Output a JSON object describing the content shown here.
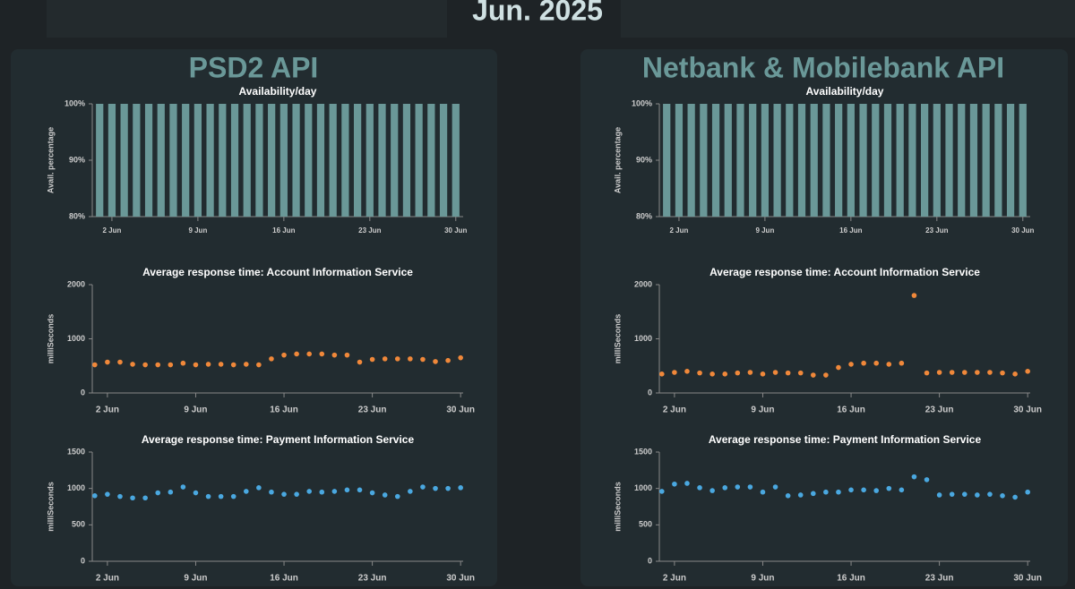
{
  "title": "Jun. 2025",
  "panels": [
    "PSD2 API",
    "Netbank & Mobilebank API"
  ],
  "chart_data": [
    {
      "type": "bar",
      "title": "Availability/day",
      "y_label": "Avail. percentage",
      "color": "#6a9898",
      "x": [
        1,
        2,
        3,
        4,
        5,
        6,
        7,
        8,
        9,
        10,
        11,
        12,
        13,
        14,
        15,
        16,
        17,
        18,
        19,
        20,
        21,
        22,
        23,
        24,
        25,
        26,
        27,
        28,
        29,
        30
      ],
      "values": [
        100,
        100,
        100,
        100,
        100,
        100,
        100,
        100,
        100,
        100,
        100,
        100,
        100,
        100,
        100,
        100,
        100,
        100,
        100,
        100,
        100,
        100,
        100,
        100,
        100,
        100,
        100,
        100,
        100,
        100
      ],
      "xlim": [
        0.4,
        30.6
      ],
      "ylim": [
        80,
        100
      ],
      "xticks": [
        {
          "value": 2,
          "label": "2 Jun"
        },
        {
          "value": 9,
          "label": "9 Jun"
        },
        {
          "value": 16,
          "label": "16 Jun"
        },
        {
          "value": 23,
          "label": "23 Jun"
        },
        {
          "value": 30,
          "label": "30 Jun"
        }
      ],
      "yticks": [
        {
          "value": 80,
          "label": "80%"
        },
        {
          "value": 90,
          "label": "90%"
        },
        {
          "value": 100,
          "label": "100%"
        }
      ]
    },
    {
      "type": "scatter",
      "title": "Average response time: Account Information Service",
      "y_label": "milliSeconds",
      "color": "#f0883a",
      "x": [
        1,
        2,
        3,
        4,
        5,
        6,
        7,
        8,
        9,
        10,
        11,
        12,
        13,
        14,
        15,
        16,
        17,
        18,
        19,
        20,
        21,
        22,
        23,
        24,
        25,
        26,
        27,
        28,
        29,
        30
      ],
      "values": [
        520,
        570,
        570,
        530,
        520,
        520,
        520,
        550,
        520,
        530,
        530,
        520,
        530,
        520,
        630,
        700,
        720,
        720,
        720,
        700,
        700,
        570,
        620,
        630,
        630,
        630,
        620,
        580,
        600,
        650
      ],
      "xlim": [
        0.8,
        30.2
      ],
      "ylim": [
        0,
        2000
      ],
      "xticks": [
        {
          "value": 2,
          "label": "2 Jun"
        },
        {
          "value": 9,
          "label": "9 Jun"
        },
        {
          "value": 16,
          "label": "16 Jun"
        },
        {
          "value": 23,
          "label": "23 Jun"
        },
        {
          "value": 30,
          "label": "30 Jun"
        }
      ],
      "yticks": [
        0,
        1000,
        2000
      ]
    },
    {
      "type": "scatter",
      "title": "Average response time: Payment Information Service",
      "y_label": "milliSeconds",
      "color": "#4aa8e0",
      "x": [
        1,
        2,
        3,
        4,
        5,
        6,
        7,
        8,
        9,
        10,
        11,
        12,
        13,
        14,
        15,
        16,
        17,
        18,
        19,
        20,
        21,
        22,
        23,
        24,
        25,
        26,
        27,
        28,
        29,
        30
      ],
      "values": [
        900,
        920,
        890,
        870,
        870,
        940,
        950,
        1020,
        940,
        890,
        890,
        890,
        960,
        1010,
        950,
        920,
        920,
        960,
        950,
        960,
        980,
        980,
        940,
        910,
        890,
        960,
        1020,
        1000,
        1000,
        1010
      ],
      "xlim": [
        0.8,
        30.2
      ],
      "ylim": [
        0,
        1500
      ],
      "xticks": [
        {
          "value": 2,
          "label": "2 Jun"
        },
        {
          "value": 9,
          "label": "9 Jun"
        },
        {
          "value": 16,
          "label": "16 Jun"
        },
        {
          "value": 23,
          "label": "23 Jun"
        },
        {
          "value": 30,
          "label": "30 Jun"
        }
      ],
      "yticks": [
        0,
        500,
        1000,
        1500
      ]
    },
    {
      "type": "bar",
      "title": "Availability/day",
      "y_label": "Avail. percentage",
      "color": "#6a9898",
      "x": [
        1,
        2,
        3,
        4,
        5,
        6,
        7,
        8,
        9,
        10,
        11,
        12,
        13,
        14,
        15,
        16,
        17,
        18,
        19,
        20,
        21,
        22,
        23,
        24,
        25,
        26,
        27,
        28,
        29,
        30
      ],
      "values": [
        100,
        100,
        100,
        100,
        100,
        100,
        100,
        100,
        100,
        100,
        100,
        100,
        100,
        100,
        100,
        100,
        100,
        100,
        100,
        100,
        100,
        100,
        100,
        100,
        100,
        100,
        100,
        100,
        100,
        100
      ],
      "xlim": [
        0.4,
        30.6
      ],
      "ylim": [
        80,
        100
      ],
      "xticks": [
        {
          "value": 2,
          "label": "2 Jun"
        },
        {
          "value": 9,
          "label": "9 Jun"
        },
        {
          "value": 16,
          "label": "16 Jun"
        },
        {
          "value": 23,
          "label": "23 Jun"
        },
        {
          "value": 30,
          "label": "30 Jun"
        }
      ],
      "yticks": [
        {
          "value": 80,
          "label": "80%"
        },
        {
          "value": 90,
          "label": "90%"
        },
        {
          "value": 100,
          "label": "100%"
        }
      ]
    },
    {
      "type": "scatter",
      "title": "Average response time: Account Information Service",
      "y_label": "milliSeconds",
      "color": "#f0883a",
      "x": [
        1,
        2,
        3,
        4,
        5,
        6,
        7,
        8,
        9,
        10,
        11,
        12,
        13,
        14,
        15,
        16,
        17,
        18,
        19,
        20,
        21,
        22,
        23,
        24,
        25,
        26,
        27,
        28,
        29,
        30
      ],
      "values": [
        350,
        380,
        400,
        370,
        350,
        350,
        370,
        380,
        350,
        380,
        370,
        370,
        330,
        330,
        470,
        530,
        550,
        550,
        530,
        550,
        1800,
        370,
        380,
        380,
        380,
        380,
        380,
        370,
        350,
        400
      ],
      "xlim": [
        0.8,
        30.2
      ],
      "ylim": [
        0,
        2000
      ],
      "xticks": [
        {
          "value": 2,
          "label": "2 Jun"
        },
        {
          "value": 9,
          "label": "9 Jun"
        },
        {
          "value": 16,
          "label": "16 Jun"
        },
        {
          "value": 23,
          "label": "23 Jun"
        },
        {
          "value": 30,
          "label": "30 Jun"
        }
      ],
      "yticks": [
        0,
        1000,
        2000
      ]
    },
    {
      "type": "scatter",
      "title": "Average response time: Payment Information Service",
      "y_label": "milliSeconds",
      "color": "#4aa8e0",
      "x": [
        1,
        2,
        3,
        4,
        5,
        6,
        7,
        8,
        9,
        10,
        11,
        12,
        13,
        14,
        15,
        16,
        17,
        18,
        19,
        20,
        21,
        22,
        23,
        24,
        25,
        26,
        27,
        28,
        29,
        30
      ],
      "values": [
        960,
        1060,
        1070,
        1010,
        970,
        1010,
        1020,
        1020,
        950,
        1020,
        900,
        910,
        930,
        950,
        950,
        980,
        980,
        970,
        1000,
        980,
        1160,
        1120,
        910,
        920,
        920,
        910,
        920,
        900,
        880,
        950
      ],
      "xlim": [
        0.8,
        30.2
      ],
      "ylim": [
        0,
        1500
      ],
      "xticks": [
        {
          "value": 2,
          "label": "2 Jun"
        },
        {
          "value": 9,
          "label": "9 Jun"
        },
        {
          "value": 16,
          "label": "16 Jun"
        },
        {
          "value": 23,
          "label": "23 Jun"
        },
        {
          "value": 30,
          "label": "30 Jun"
        }
      ],
      "yticks": [
        0,
        500,
        1000,
        1500
      ]
    }
  ]
}
